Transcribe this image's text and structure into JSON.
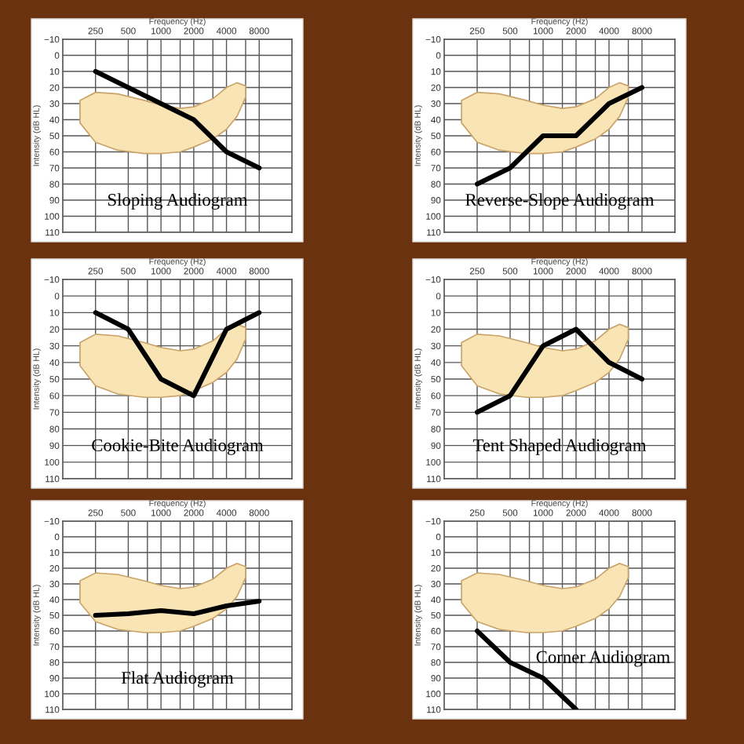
{
  "chart_data": [
    {
      "type": "line",
      "title": "Sloping Audiogram",
      "xlabel": "Frequency (Hz)",
      "ylabel": "Intensity (dB HL)",
      "x": [
        250,
        500,
        1000,
        2000,
        4000,
        8000
      ],
      "series": [
        {
          "color": "#000000",
          "values": [
            10,
            20,
            30,
            40,
            60,
            70
          ]
        }
      ],
      "log": "x",
      "xlim": [
        125,
        16000
      ],
      "xticks": [
        250,
        500,
        {
          "value": 750,
          "label": null
        },
        1000,
        {
          "value": 1500,
          "label": null
        },
        2000,
        {
          "value": 3000,
          "label": null
        },
        4000,
        {
          "value": 6000,
          "label": null
        },
        8000
      ],
      "ylim": [
        110,
        -10
      ],
      "yticks": [
        -10,
        0,
        10,
        20,
        30,
        40,
        50,
        60,
        70,
        80,
        90,
        100,
        110
      ],
      "grid": true
    },
    {
      "type": "line",
      "title": "Reverse-Slope Audiogram",
      "xlabel": "Frequency (Hz)",
      "ylabel": "Intensity (dB HL)",
      "x": [
        250,
        500,
        1000,
        2000,
        4000,
        8000
      ],
      "series": [
        {
          "color": "#000000",
          "values": [
            80,
            70,
            50,
            50,
            30,
            20
          ]
        }
      ],
      "log": "x",
      "xlim": [
        125,
        16000
      ],
      "xticks": [
        250,
        500,
        {
          "value": 750,
          "label": null
        },
        1000,
        {
          "value": 1500,
          "label": null
        },
        2000,
        {
          "value": 3000,
          "label": null
        },
        4000,
        {
          "value": 6000,
          "label": null
        },
        8000
      ],
      "ylim": [
        110,
        -10
      ],
      "yticks": [
        -10,
        0,
        10,
        20,
        30,
        40,
        50,
        60,
        70,
        80,
        90,
        100,
        110
      ],
      "grid": true
    },
    {
      "type": "line",
      "title": "Cookie-Bite Audiogram",
      "xlabel": "Frequency (Hz)",
      "ylabel": "Intensity (dB HL)",
      "x": [
        250,
        500,
        1000,
        2000,
        4000,
        8000
      ],
      "series": [
        {
          "color": "#000000",
          "values": [
            10,
            20,
            50,
            60,
            20,
            10
          ]
        }
      ],
      "log": "x",
      "xlim": [
        125,
        16000
      ],
      "xticks": [
        250,
        500,
        {
          "value": 750,
          "label": null
        },
        1000,
        {
          "value": 1500,
          "label": null
        },
        2000,
        {
          "value": 3000,
          "label": null
        },
        4000,
        {
          "value": 6000,
          "label": null
        },
        8000
      ],
      "ylim": [
        110,
        -10
      ],
      "yticks": [
        -10,
        0,
        10,
        20,
        30,
        40,
        50,
        60,
        70,
        80,
        90,
        100,
        110
      ],
      "grid": true
    },
    {
      "type": "line",
      "title": "Tent Shaped Audiogram",
      "xlabel": "Frequency (Hz)",
      "ylabel": "Intensity (dB HL)",
      "x": [
        250,
        500,
        1000,
        2000,
        4000,
        8000
      ],
      "series": [
        {
          "color": "#000000",
          "values": [
            70,
            60,
            30,
            20,
            40,
            50
          ]
        }
      ],
      "log": "x",
      "xlim": [
        125,
        16000
      ],
      "xticks": [
        250,
        500,
        {
          "value": 750,
          "label": null
        },
        1000,
        {
          "value": 1500,
          "label": null
        },
        2000,
        {
          "value": 3000,
          "label": null
        },
        4000,
        {
          "value": 6000,
          "label": null
        },
        8000
      ],
      "ylim": [
        110,
        -10
      ],
      "yticks": [
        -10,
        0,
        10,
        20,
        30,
        40,
        50,
        60,
        70,
        80,
        90,
        100,
        110
      ],
      "grid": true
    },
    {
      "type": "line",
      "title": "Flat Audiogram",
      "xlabel": "Frequency (Hz)",
      "ylabel": "Intensity (dB HL)",
      "x": [
        250,
        500,
        1000,
        2000,
        4000,
        8000
      ],
      "series": [
        {
          "color": "#000000",
          "values": [
            50,
            49,
            47,
            49,
            44,
            41
          ]
        }
      ],
      "log": "x",
      "xlim": [
        125,
        16000
      ],
      "xticks": [
        250,
        500,
        {
          "value": 750,
          "label": null
        },
        1000,
        {
          "value": 1500,
          "label": null
        },
        2000,
        {
          "value": 3000,
          "label": null
        },
        4000,
        {
          "value": 6000,
          "label": null
        },
        8000
      ],
      "ylim": [
        110,
        -10
      ],
      "yticks": [
        -10,
        0,
        10,
        20,
        30,
        40,
        50,
        60,
        70,
        80,
        90,
        100,
        110
      ],
      "grid": true
    },
    {
      "type": "line",
      "title": "Corner Audiogram",
      "xlabel": "Frequency (Hz)",
      "ylabel": "Intensity (dB HL)",
      "x": [
        250,
        500,
        1000,
        2000
      ],
      "series": [
        {
          "color": "#000000",
          "values": [
            60,
            80,
            90,
            110
          ]
        }
      ],
      "log": "x",
      "xlim": [
        125,
        16000
      ],
      "xticks": [
        250,
        500,
        {
          "value": 750,
          "label": null
        },
        1000,
        {
          "value": 1500,
          "label": null
        },
        2000,
        {
          "value": 3000,
          "label": null
        },
        4000,
        {
          "value": 6000,
          "label": null
        },
        8000
      ],
      "ylim": [
        110,
        -10
      ],
      "yticks": [
        -10,
        0,
        10,
        20,
        30,
        40,
        50,
        60,
        70,
        80,
        90,
        100,
        110
      ],
      "grid": true
    }
  ]
}
